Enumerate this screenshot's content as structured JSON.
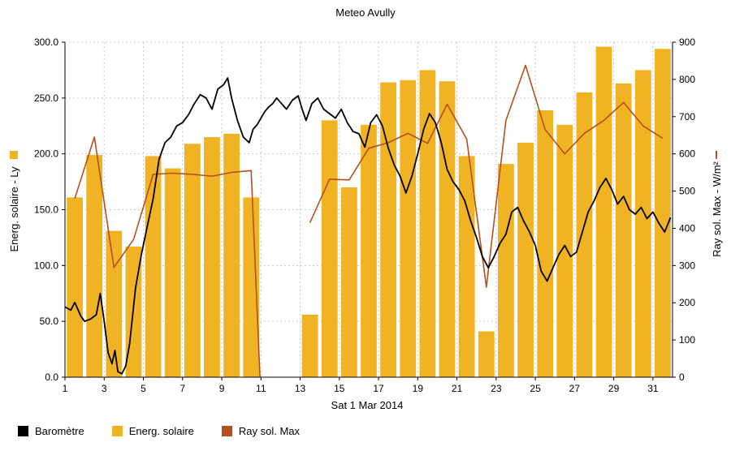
{
  "chart_data": {
    "type": "bar",
    "title": "Meteo  Avully",
    "xlabel": "Sat 1 Mar 2014",
    "ylabel_left": "Energ. solaire - Ly",
    "ylabel_right": "Ray sol. Max - W/m²",
    "y_left_range": [
      0,
      300
    ],
    "y_left_ticks": [
      "0.0",
      "50.0",
      "100.0",
      "150.0",
      "200.0",
      "250.0",
      "300.0"
    ],
    "y_right_range": [
      0,
      900
    ],
    "y_right_ticks": [
      "0",
      "100",
      "200",
      "300",
      "400",
      "500",
      "600",
      "700",
      "800",
      "900"
    ],
    "x_range": [
      1,
      32
    ],
    "x_ticks": [
      "1",
      "3",
      "5",
      "7",
      "9",
      "11",
      "13",
      "15",
      "17",
      "19",
      "21",
      "23",
      "25",
      "27",
      "29",
      "31"
    ],
    "grid": true,
    "series": [
      {
        "name": "Energ. solaire",
        "type": "bar",
        "axis": "left",
        "color": "#F0B323",
        "days": [
          1,
          2,
          3,
          4,
          5,
          6,
          7,
          8,
          9,
          10,
          11,
          12,
          13,
          14,
          15,
          16,
          17,
          18,
          19,
          20,
          21,
          22,
          23,
          24,
          25,
          26,
          27,
          28,
          29,
          30,
          31
        ],
        "values": [
          161,
          199,
          131,
          117,
          198,
          187,
          209,
          215,
          218,
          161,
          0,
          0,
          56,
          230,
          170,
          226,
          264,
          266,
          275,
          265,
          198,
          41,
          191,
          210,
          239,
          226,
          255,
          296,
          263,
          275,
          294
        ]
      },
      {
        "name": "Ray sol. Max",
        "type": "line",
        "axis": "right",
        "color": "#B5501E",
        "points": [
          [
            1,
            480
          ],
          [
            2,
            645
          ],
          [
            3,
            295
          ],
          [
            4,
            370
          ],
          [
            5,
            545
          ],
          [
            6,
            548
          ],
          [
            7,
            545
          ],
          [
            8,
            540
          ],
          [
            9,
            550
          ],
          [
            10,
            555
          ],
          [
            10.45,
            0
          ],
          [
            null,
            null
          ],
          [
            13,
            415
          ],
          [
            14,
            532
          ],
          [
            15,
            530
          ],
          [
            16,
            615
          ],
          [
            17,
            630
          ],
          [
            18,
            655
          ],
          [
            19,
            628
          ],
          [
            20,
            733
          ],
          [
            21,
            640
          ],
          [
            22,
            242
          ],
          [
            23,
            690
          ],
          [
            24,
            838
          ],
          [
            25,
            665
          ],
          [
            26,
            600
          ],
          [
            27,
            655
          ],
          [
            28,
            690
          ],
          [
            29,
            738
          ],
          [
            30,
            675
          ],
          [
            31,
            642
          ]
        ]
      },
      {
        "name": "Baromètre",
        "type": "line",
        "axis": "left",
        "color": "#000000",
        "points": [
          [
            1,
            63
          ],
          [
            1.3,
            60
          ],
          [
            1.5,
            67
          ],
          [
            1.8,
            55
          ],
          [
            2,
            50
          ],
          [
            2.3,
            52
          ],
          [
            2.6,
            56
          ],
          [
            2.8,
            75
          ],
          [
            3.0,
            50
          ],
          [
            3.2,
            22
          ],
          [
            3.4,
            12
          ],
          [
            3.55,
            24
          ],
          [
            3.7,
            5
          ],
          [
            3.9,
            3
          ],
          [
            4.1,
            10
          ],
          [
            4.3,
            30
          ],
          [
            4.6,
            80
          ],
          [
            4.9,
            110
          ],
          [
            5.2,
            135
          ],
          [
            5.5,
            160
          ],
          [
            5.8,
            195
          ],
          [
            6.1,
            210
          ],
          [
            6.4,
            215
          ],
          [
            6.7,
            225
          ],
          [
            7,
            228
          ],
          [
            7.3,
            235
          ],
          [
            7.6,
            245
          ],
          [
            7.9,
            253
          ],
          [
            8.2,
            250
          ],
          [
            8.5,
            240
          ],
          [
            8.8,
            258
          ],
          [
            9.1,
            262
          ],
          [
            9.3,
            268
          ],
          [
            9.5,
            250
          ],
          [
            9.8,
            230
          ],
          [
            10.1,
            215
          ],
          [
            10.4,
            210
          ],
          [
            10.6,
            222
          ],
          [
            10.8,
            226
          ],
          [
            11,
            232
          ],
          [
            11.2,
            238
          ],
          [
            11.4,
            242
          ],
          [
            11.6,
            245
          ],
          [
            11.8,
            250
          ],
          [
            12,
            246
          ],
          [
            12.3,
            240
          ],
          [
            12.6,
            248
          ],
          [
            12.9,
            252
          ],
          [
            13.1,
            240
          ],
          [
            13.3,
            230
          ],
          [
            13.6,
            245
          ],
          [
            13.9,
            250
          ],
          [
            14.2,
            240
          ],
          [
            14.5,
            236
          ],
          [
            14.8,
            232
          ],
          [
            15.1,
            240
          ],
          [
            15.4,
            228
          ],
          [
            15.7,
            220
          ],
          [
            16,
            218
          ],
          [
            16.3,
            206
          ],
          [
            16.6,
            228
          ],
          [
            16.9,
            235
          ],
          [
            17.2,
            225
          ],
          [
            17.5,
            205
          ],
          [
            17.8,
            190
          ],
          [
            18.1,
            180
          ],
          [
            18.4,
            165
          ],
          [
            18.7,
            180
          ],
          [
            19,
            200
          ],
          [
            19.3,
            222
          ],
          [
            19.6,
            236
          ],
          [
            19.9,
            228
          ],
          [
            20.2,
            210
          ],
          [
            20.5,
            186
          ],
          [
            20.8,
            175
          ],
          [
            21.1,
            168
          ],
          [
            21.4,
            158
          ],
          [
            21.7,
            140
          ],
          [
            22.0,
            125
          ],
          [
            22.3,
            108
          ],
          [
            22.6,
            98
          ],
          [
            22.9,
            108
          ],
          [
            23.2,
            120
          ],
          [
            23.5,
            128
          ],
          [
            23.8,
            148
          ],
          [
            24.1,
            152
          ],
          [
            24.4,
            140
          ],
          [
            24.7,
            130
          ],
          [
            25,
            118
          ],
          [
            25.3,
            95
          ],
          [
            25.6,
            86
          ],
          [
            25.9,
            98
          ],
          [
            26.2,
            110
          ],
          [
            26.5,
            118
          ],
          [
            26.8,
            108
          ],
          [
            27.1,
            112
          ],
          [
            27.4,
            130
          ],
          [
            27.7,
            148
          ],
          [
            28,
            158
          ],
          [
            28.3,
            170
          ],
          [
            28.6,
            178
          ],
          [
            28.9,
            168
          ],
          [
            29.2,
            155
          ],
          [
            29.5,
            162
          ],
          [
            29.8,
            150
          ],
          [
            30.1,
            146
          ],
          [
            30.4,
            152
          ],
          [
            30.7,
            142
          ],
          [
            31.0,
            148
          ],
          [
            31.3,
            138
          ],
          [
            31.6,
            130
          ],
          [
            31.9,
            143
          ]
        ]
      }
    ],
    "legend": [
      {
        "label": "Baromètre",
        "color": "#000000"
      },
      {
        "label": "Energ. solaire",
        "color": "#F0B323"
      },
      {
        "label": "Ray sol. Max",
        "color": "#B5501E"
      }
    ],
    "legend_placement": "bottom-left"
  }
}
